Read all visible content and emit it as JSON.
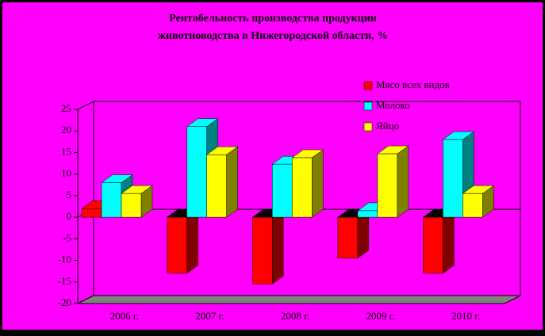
{
  "chart_data": {
    "type": "bar3d",
    "title": "Рентабельность производства продукции",
    "subtitle": "животноводства в Нижегородской области, %",
    "categories": [
      "2006 г.",
      "2007 г.",
      "2008 г.",
      "2009 г.",
      "2010 г."
    ],
    "series": [
      {
        "name": "Мясо всех видов",
        "color": "#ff0000",
        "values": [
          2,
          -13,
          -15.5,
          -9.5,
          -13
        ]
      },
      {
        "name": "Молоко",
        "color": "#00ffff",
        "values": [
          8,
          21,
          12.3,
          1.5,
          18
        ]
      },
      {
        "name": "Яйцо",
        "color": "#ffff00",
        "values": [
          5.5,
          14.5,
          13.8,
          14.7,
          5.5
        ]
      }
    ],
    "ylim": [
      -20,
      25
    ],
    "yticks": [
      -20,
      -15,
      -10,
      -5,
      0,
      5,
      10,
      15,
      20,
      25
    ],
    "grid": false,
    "legend": "top-right"
  }
}
